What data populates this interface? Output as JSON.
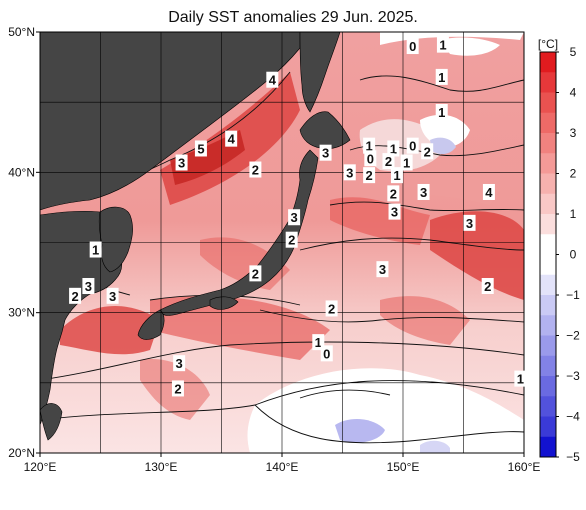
{
  "title": "Daily SST anomalies 29 Jun. 2025.",
  "colorbar": {
    "unit": "[°C]",
    "ticks": [
      "5",
      "4",
      "3",
      "2",
      "1",
      "0",
      "−1",
      "−2",
      "−3",
      "−4",
      "−5"
    ],
    "range": [
      -5,
      5
    ]
  },
  "map": {
    "lon_range": [
      120,
      160
    ],
    "lat_range": [
      20,
      50
    ],
    "lon_ticks": [
      "120°E",
      "130°E",
      "140°E",
      "150°E",
      "160°E"
    ],
    "lat_ticks": [
      "50°N",
      "40°N",
      "30°N",
      "20°N"
    ],
    "grid_step_deg": 5,
    "land_color": "#454545"
  },
  "contour_labels": [
    {
      "text": "0",
      "lon": 150.8,
      "lat": 49.0
    },
    {
      "text": "1",
      "lon": 153.3,
      "lat": 49.1
    },
    {
      "text": "1",
      "lon": 153.2,
      "lat": 46.8
    },
    {
      "text": "1",
      "lon": 153.2,
      "lat": 44.3
    },
    {
      "text": "4",
      "lon": 139.2,
      "lat": 46.6
    },
    {
      "text": "4",
      "lon": 135.8,
      "lat": 42.4
    },
    {
      "text": "5",
      "lon": 133.3,
      "lat": 41.7
    },
    {
      "text": "3",
      "lon": 131.7,
      "lat": 40.7
    },
    {
      "text": "2",
      "lon": 137.8,
      "lat": 40.2
    },
    {
      "text": "1",
      "lon": 147.2,
      "lat": 41.9
    },
    {
      "text": "1",
      "lon": 149.2,
      "lat": 41.7
    },
    {
      "text": "0",
      "lon": 150.8,
      "lat": 41.9
    },
    {
      "text": "2",
      "lon": 152.0,
      "lat": 41.5
    },
    {
      "text": "0",
      "lon": 147.3,
      "lat": 41.0
    },
    {
      "text": "2",
      "lon": 148.8,
      "lat": 40.8
    },
    {
      "text": "1",
      "lon": 150.3,
      "lat": 40.7
    },
    {
      "text": "3",
      "lon": 143.6,
      "lat": 41.4
    },
    {
      "text": "3",
      "lon": 145.6,
      "lat": 40.0
    },
    {
      "text": "2",
      "lon": 147.2,
      "lat": 39.8
    },
    {
      "text": "1",
      "lon": 149.5,
      "lat": 39.8
    },
    {
      "text": "2",
      "lon": 149.2,
      "lat": 38.5
    },
    {
      "text": "3",
      "lon": 151.7,
      "lat": 38.6
    },
    {
      "text": "4",
      "lon": 157.1,
      "lat": 38.6
    },
    {
      "text": "3",
      "lon": 149.3,
      "lat": 37.2
    },
    {
      "text": "3",
      "lon": 155.5,
      "lat": 36.4
    },
    {
      "text": "3",
      "lon": 141.0,
      "lat": 36.8
    },
    {
      "text": "2",
      "lon": 140.8,
      "lat": 35.2
    },
    {
      "text": "1",
      "lon": 124.6,
      "lat": 34.5
    },
    {
      "text": "2",
      "lon": 137.8,
      "lat": 32.8
    },
    {
      "text": "3",
      "lon": 148.3,
      "lat": 33.1
    },
    {
      "text": "2",
      "lon": 157.0,
      "lat": 31.9
    },
    {
      "text": "2",
      "lon": 122.9,
      "lat": 31.2
    },
    {
      "text": "3",
      "lon": 124.0,
      "lat": 31.9
    },
    {
      "text": "3",
      "lon": 126.0,
      "lat": 31.2
    },
    {
      "text": "2",
      "lon": 144.1,
      "lat": 30.3
    },
    {
      "text": "1",
      "lon": 143.0,
      "lat": 27.9
    },
    {
      "text": "0",
      "lon": 143.7,
      "lat": 27.1
    },
    {
      "text": "3",
      "lon": 131.5,
      "lat": 26.4
    },
    {
      "text": "2",
      "lon": 131.4,
      "lat": 24.6
    },
    {
      "text": "1",
      "lon": 159.7,
      "lat": 25.3
    }
  ]
}
